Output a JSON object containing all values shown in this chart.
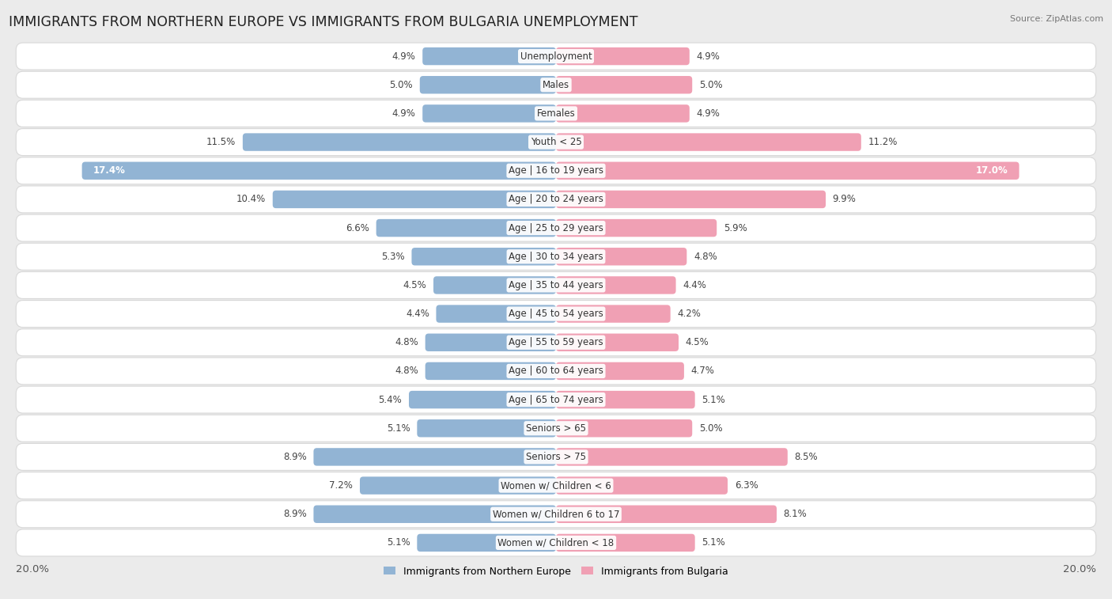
{
  "title": "IMMIGRANTS FROM NORTHERN EUROPE VS IMMIGRANTS FROM BULGARIA UNEMPLOYMENT",
  "source": "Source: ZipAtlas.com",
  "categories": [
    "Unemployment",
    "Males",
    "Females",
    "Youth < 25",
    "Age | 16 to 19 years",
    "Age | 20 to 24 years",
    "Age | 25 to 29 years",
    "Age | 30 to 34 years",
    "Age | 35 to 44 years",
    "Age | 45 to 54 years",
    "Age | 55 to 59 years",
    "Age | 60 to 64 years",
    "Age | 65 to 74 years",
    "Seniors > 65",
    "Seniors > 75",
    "Women w/ Children < 6",
    "Women w/ Children 6 to 17",
    "Women w/ Children < 18"
  ],
  "left_values": [
    4.9,
    5.0,
    4.9,
    11.5,
    17.4,
    10.4,
    6.6,
    5.3,
    4.5,
    4.4,
    4.8,
    4.8,
    5.4,
    5.1,
    8.9,
    7.2,
    8.9,
    5.1
  ],
  "right_values": [
    4.9,
    5.0,
    4.9,
    11.2,
    17.0,
    9.9,
    5.9,
    4.8,
    4.4,
    4.2,
    4.5,
    4.7,
    5.1,
    5.0,
    8.5,
    6.3,
    8.1,
    5.1
  ],
  "left_color": "#92b4d4",
  "right_color": "#f0a0b4",
  "label_left": "Immigrants from Northern Europe",
  "label_right": "Immigrants from Bulgaria",
  "bg_color": "#ebebeb",
  "row_bg_color": "#ffffff",
  "max_val": 20.0,
  "title_fontsize": 12.5,
  "axis_label_fontsize": 9.5,
  "bar_label_fontsize": 8.5,
  "category_fontsize": 8.5
}
